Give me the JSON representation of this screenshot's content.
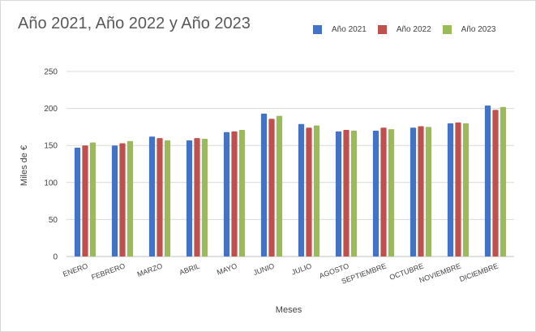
{
  "chart_data": {
    "type": "bar",
    "title": "Año 2021, Año 2022 y Año 2023",
    "xlabel": "Meses",
    "ylabel": "Miles de €",
    "ylim": [
      0,
      250
    ],
    "yticks": [
      0,
      50,
      100,
      150,
      200,
      250
    ],
    "grid": true,
    "legend_position": "top-right",
    "categories": [
      "ENERO",
      "FEBRERO",
      "MARZO",
      "ABRIL",
      "MAYO",
      "JUNIO",
      "JULIO",
      "AGOSTO",
      "SEPTIEMBRE",
      "OCTUBRE",
      "NOVIEMBRE",
      "DICIEMBRE"
    ],
    "series": [
      {
        "name": "Año 2021",
        "color": "#4472c4",
        "values": [
          147,
          150,
          162,
          157,
          168,
          193,
          179,
          169,
          170,
          174,
          180,
          204
        ]
      },
      {
        "name": "Año 2022",
        "color": "#c0504d",
        "values": [
          150,
          153,
          160,
          160,
          169,
          186,
          174,
          171,
          174,
          176,
          181,
          198
        ]
      },
      {
        "name": "Año 2023",
        "color": "#9bbb59",
        "values": [
          154,
          156,
          157,
          159,
          171,
          190,
          177,
          170,
          172,
          175,
          180,
          202
        ]
      }
    ]
  }
}
